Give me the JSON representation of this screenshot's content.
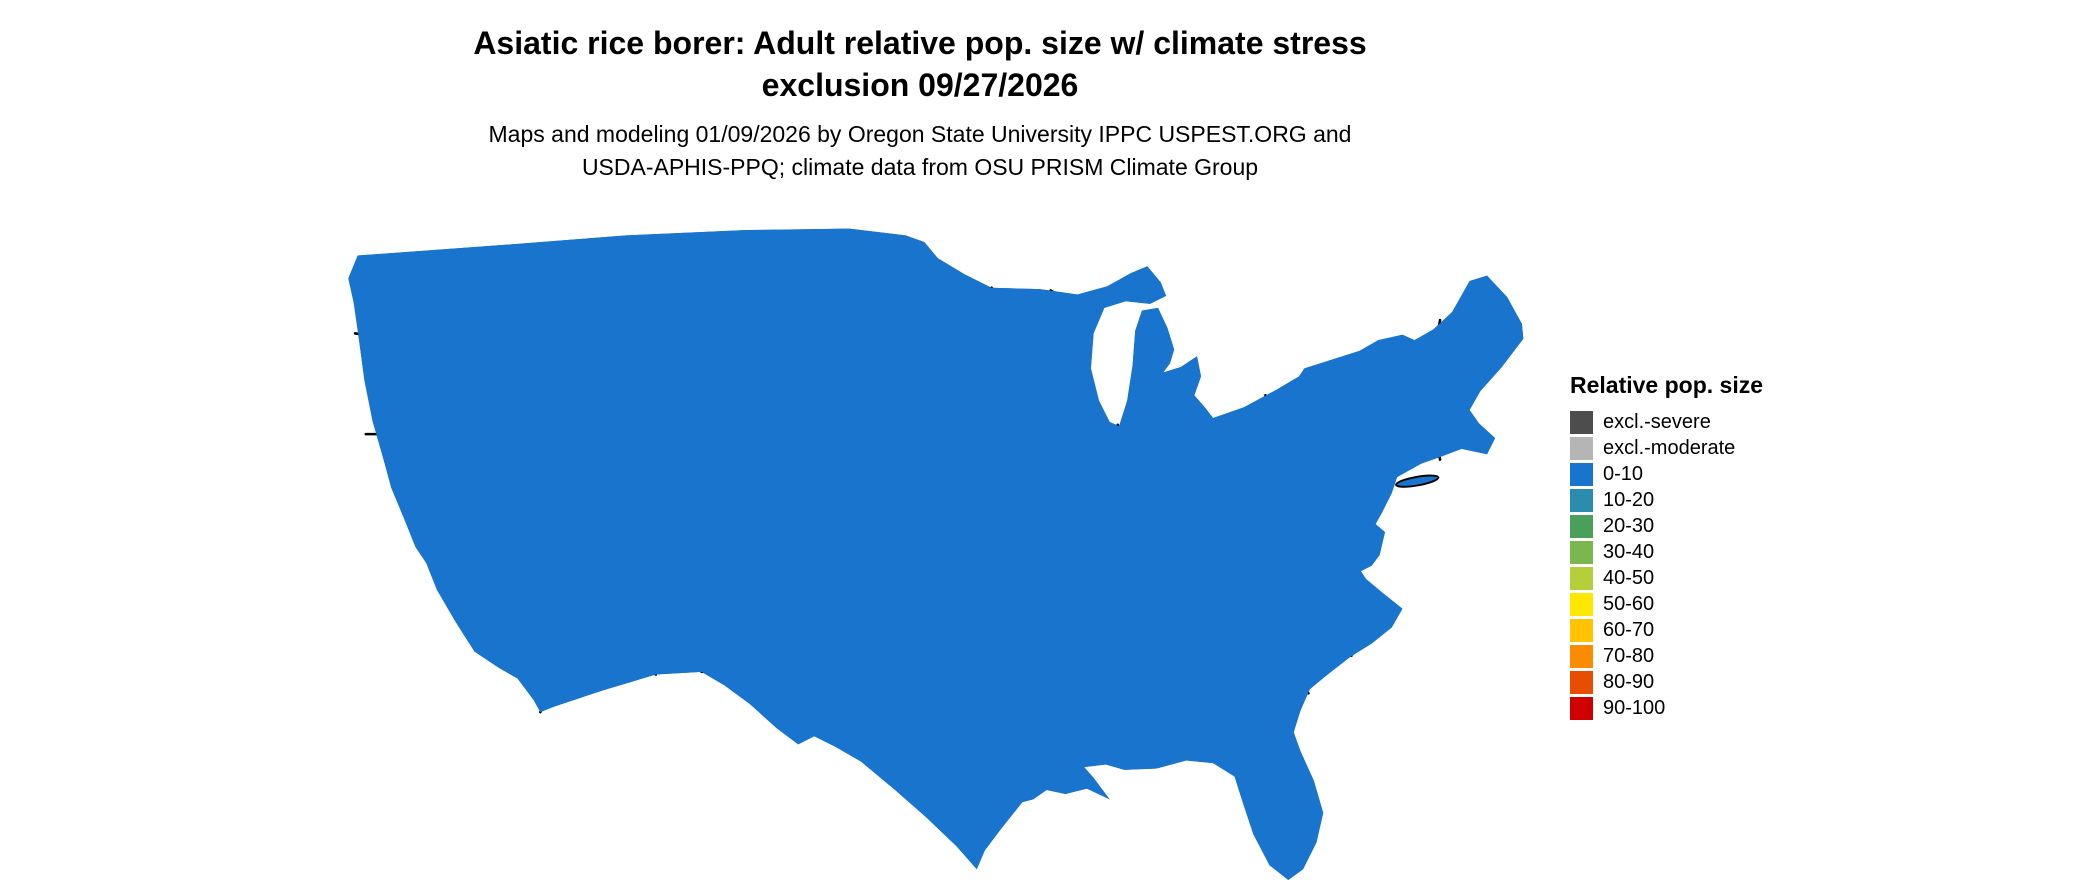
{
  "title": {
    "line1": "Asiatic rice borer: Adult relative pop. size w/ climate stress",
    "line2": "exclusion 09/27/2026"
  },
  "subtitle": {
    "line1": "Maps and modeling 01/09/2026 by Oregon State University IPPC USPEST.ORG and",
    "line2": "USDA-APHIS-PPQ; climate data from OSU PRISM Climate Group"
  },
  "map": {
    "region": "Continental United States",
    "base_color": "#1874cd",
    "border_color": "#000000",
    "excluded_moderate_color": "#b5b5b5",
    "excluded_severe_color": "#4d4d4d"
  },
  "legend": {
    "title": "Relative pop. size",
    "items": [
      {
        "label": "excl.-severe",
        "color": "#4d4d4d"
      },
      {
        "label": "excl.-moderate",
        "color": "#b5b5b5"
      },
      {
        "label": "0-10",
        "color": "#1874cd"
      },
      {
        "label": "10-20",
        "color": "#2b8cad"
      },
      {
        "label": "20-30",
        "color": "#4aa05a"
      },
      {
        "label": "30-40",
        "color": "#7ab74e"
      },
      {
        "label": "40-50",
        "color": "#b5cf3a"
      },
      {
        "label": "50-60",
        "color": "#ffe800"
      },
      {
        "label": "60-70",
        "color": "#ffc300"
      },
      {
        "label": "70-80",
        "color": "#fb8b00"
      },
      {
        "label": "80-90",
        "color": "#e84e00"
      },
      {
        "label": "90-100",
        "color": "#d10000"
      }
    ]
  }
}
